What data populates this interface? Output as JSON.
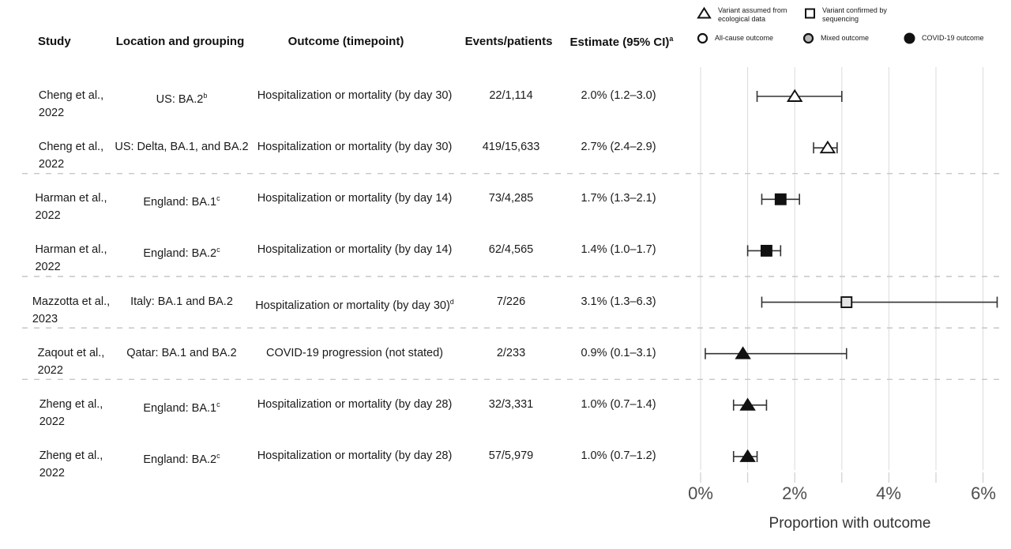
{
  "figure_colors": {
    "ci_line": "#333333",
    "marker_stroke": "#111111",
    "grid": "#dbdbdb",
    "tick": "#cfcfcf",
    "separator": "#c6c6c6",
    "axis_label": "#4d4d4d"
  },
  "legend": {
    "items": [
      {
        "icon": "triangle-open",
        "label": "Variant assumed from ecological data"
      },
      {
        "icon": "square-open",
        "label": "Variant confirmed by sequencing"
      },
      {
        "icon": "circle-open",
        "label": "All-cause outcome"
      },
      {
        "icon": "circle-gray",
        "label": "Mixed outcome"
      },
      {
        "icon": "circle-black",
        "label": "COVID-19 outcome"
      }
    ]
  },
  "table": {
    "headers": {
      "study": "Study",
      "location": "Location and grouping",
      "outcome": "Outcome (timepoint)",
      "events": "Events/patients",
      "estimate": "Estimate (95% CI)",
      "estimate_sup": "a"
    }
  },
  "chart_data": {
    "type": "forest",
    "xlabel": "Proportion with outcome",
    "xlim": [
      0,
      6
    ],
    "x_unit": "%",
    "gridlines_pct": [
      0,
      1,
      2,
      3,
      4,
      5,
      6
    ],
    "x_tick_labels": [
      {
        "value": 0,
        "label": "0%"
      },
      {
        "value": 2,
        "label": "2%"
      },
      {
        "value": 4,
        "label": "4%"
      },
      {
        "value": 6,
        "label": "6%"
      }
    ],
    "legend_position": "top-right",
    "grid": true,
    "separators_after_row": [
      2,
      4,
      5,
      6
    ],
    "rows": [
      {
        "study": "Cheng et al.,",
        "year": "2022",
        "location": "US: BA.2",
        "location_sup": "b",
        "outcome": "Hospitalization or mortality (by day 30)",
        "outcome_sup": "",
        "events": "22/1,114",
        "estimate_label": "2.0% (1.2–3.0)",
        "est": 2.0,
        "lo": 1.2,
        "hi": 3.0,
        "marker": "triangle",
        "fill": "#ffffff"
      },
      {
        "study": "Cheng et al.,",
        "year": "2022",
        "location": "US: Delta, BA.1, and BA.2",
        "location_sup": "",
        "outcome": "Hospitalization or mortality (by day 30)",
        "outcome_sup": "",
        "events": "419/15,633",
        "estimate_label": "2.7% (2.4–2.9)",
        "est": 2.7,
        "lo": 2.4,
        "hi": 2.9,
        "marker": "triangle",
        "fill": "#ffffff"
      },
      {
        "study": "Harman et al.,",
        "year": "2022",
        "location": "England: BA.1",
        "location_sup": "c",
        "outcome": "Hospitalization or mortality (by day 14)",
        "outcome_sup": "",
        "events": "73/4,285",
        "estimate_label": "1.7% (1.3–2.1)",
        "est": 1.7,
        "lo": 1.3,
        "hi": 2.1,
        "marker": "square",
        "fill": "#111111"
      },
      {
        "study": "Harman et al.,",
        "year": "2022",
        "location": "England: BA.2",
        "location_sup": "c",
        "outcome": "Hospitalization or mortality (by day 14)",
        "outcome_sup": "",
        "events": "62/4,565",
        "estimate_label": "1.4% (1.0–1.7)",
        "est": 1.4,
        "lo": 1.0,
        "hi": 1.7,
        "marker": "square",
        "fill": "#111111"
      },
      {
        "study": "Mazzotta et al.,",
        "year": "2023",
        "location": "Italy: BA.1 and BA.2",
        "location_sup": "",
        "outcome": "Hospitalization or mortality (by day 30)",
        "outcome_sup": "d",
        "events": "7/226",
        "estimate_label": "3.1% (1.3–6.3)",
        "est": 3.1,
        "lo": 1.3,
        "hi": 6.3,
        "marker": "square",
        "fill": "#e4e4e4"
      },
      {
        "study": "Zaqout et al.,",
        "year": "2022",
        "location": "Qatar: BA.1 and BA.2",
        "location_sup": "",
        "outcome": "COVID-19 progression (not stated)",
        "outcome_sup": "",
        "events": "2/233",
        "estimate_label": "0.9% (0.1–3.1)",
        "est": 0.9,
        "lo": 0.1,
        "hi": 3.1,
        "marker": "triangle",
        "fill": "#111111"
      },
      {
        "study": "Zheng et al.,",
        "year": "2022",
        "location": "England: BA.1",
        "location_sup": "c",
        "outcome": "Hospitalization or mortality (by day 28)",
        "outcome_sup": "",
        "events": "32/3,331",
        "estimate_label": "1.0% (0.7–1.4)",
        "est": 1.0,
        "lo": 0.7,
        "hi": 1.4,
        "marker": "triangle",
        "fill": "#111111"
      },
      {
        "study": "Zheng et al.,",
        "year": "2022",
        "location": "England: BA.2",
        "location_sup": "c",
        "outcome": "Hospitalization or mortality (by day 28)",
        "outcome_sup": "",
        "events": "57/5,979",
        "estimate_label": "1.0% (0.7–1.2)",
        "est": 1.0,
        "lo": 0.7,
        "hi": 1.2,
        "marker": "triangle",
        "fill": "#111111"
      }
    ]
  }
}
